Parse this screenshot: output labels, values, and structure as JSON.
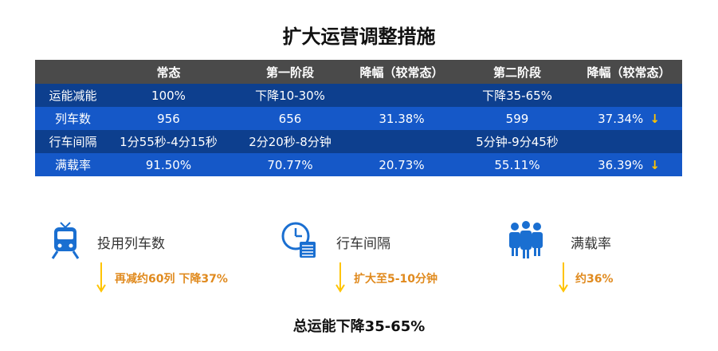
{
  "title": "扩大运营调整措施",
  "table": {
    "headers": [
      "",
      "常态",
      "第一阶段",
      "降幅（较常态）",
      "第二阶段",
      "降幅（较常态）"
    ],
    "rows": [
      {
        "label": "运能减能",
        "normal": "100%",
        "stage1": "下降10-30%",
        "drop1": "",
        "stage2": "下降35-65%",
        "drop2": ""
      },
      {
        "label": "列车数",
        "normal": "956",
        "stage1": "656",
        "drop1": "31.38%",
        "stage2": "599",
        "drop2": "37.34%"
      },
      {
        "label": "行车间隔",
        "normal": "1分55秒-4分15秒",
        "stage1": "2分20秒-8分钟",
        "drop1": "",
        "stage2": "5分钟-9分45秒",
        "drop2": ""
      },
      {
        "label": "满载率",
        "normal": "91.50%",
        "stage1": "70.77%",
        "drop1": "20.73%",
        "stage2": "55.11%",
        "drop2": "36.39%"
      }
    ],
    "down_arrow": "↓"
  },
  "features": [
    {
      "icon": "train-icon",
      "label": "投用列车数",
      "note": "再减约60列 下降37%"
    },
    {
      "icon": "clock-schedule-icon",
      "label": "行车间隔",
      "note": "扩大至5-10分钟"
    },
    {
      "icon": "people-icon",
      "label": "满载率",
      "note": "约36%"
    }
  ],
  "summary": "总运能下降35-65%",
  "colors": {
    "header_bg": "#4a4a4a",
    "row_dark": "#0d3f8e",
    "row_light": "#1558c8",
    "accent_blue": "#1a6fd1",
    "accent_orange": "#e08a1e",
    "arrow_yellow": "#ffc400"
  }
}
